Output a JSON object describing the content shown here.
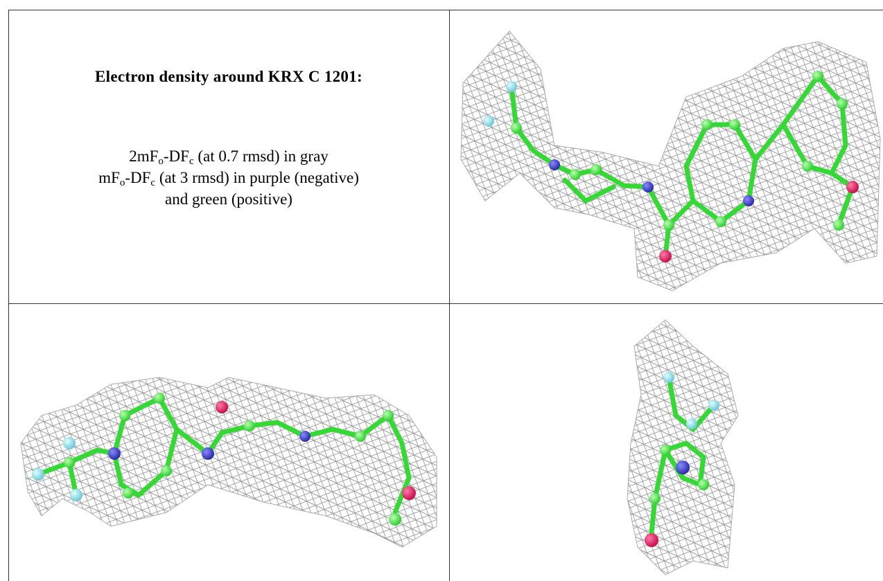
{
  "title": "Electron density around KRX C 1201:",
  "legend": {
    "lines": [
      [
        "2mF",
        "o",
        "-DF",
        "c",
        " (at 0.7 rmsd) in gray"
      ],
      [
        "mF",
        "o",
        "-DF",
        "c",
        " (at 3 rmsd) in purple (negative)"
      ],
      [
        "and green (positive)"
      ]
    ]
  }
}
